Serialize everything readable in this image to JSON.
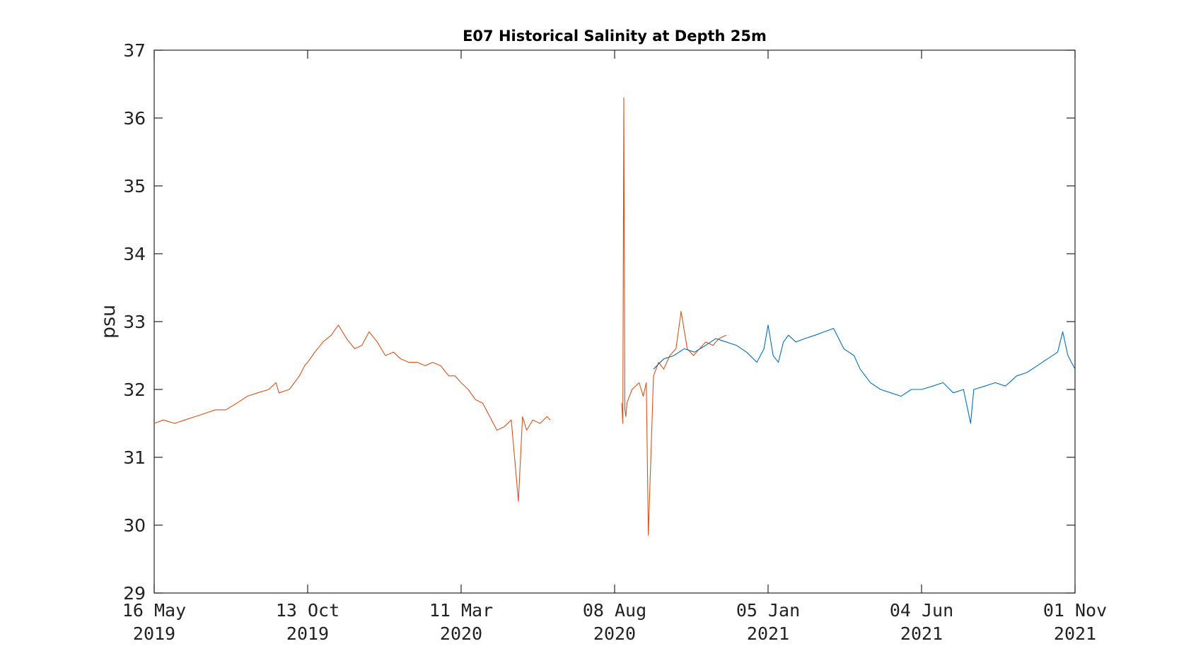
{
  "chart_data": {
    "type": "line",
    "title": "E07 Historical Salinity at Depth 25m",
    "xlabel": "",
    "ylabel": "psu",
    "ylim": [
      29,
      37
    ],
    "yticks": [
      "29",
      "30",
      "31",
      "32",
      "33",
      "34",
      "35",
      "36",
      "37"
    ],
    "xlim": [
      "2019-05-16",
      "2021-11-01"
    ],
    "xticks": [
      {
        "line1": "16 May",
        "line2": "2019",
        "date": "2019-05-16"
      },
      {
        "line1": "13 Oct",
        "line2": "2019",
        "date": "2019-10-13"
      },
      {
        "line1": "11 Mar",
        "line2": "2020",
        "date": "2020-03-11"
      },
      {
        "line1": "08 Aug",
        "line2": "2020",
        "date": "2020-08-08"
      },
      {
        "line1": "05 Jan",
        "line2": "2021",
        "date": "2021-01-05"
      },
      {
        "line1": "04 Jun",
        "line2": "2021",
        "date": "2021-06-04"
      },
      {
        "line1": "01 Nov",
        "line2": "2021",
        "date": "2021-11-01"
      }
    ],
    "grid": false,
    "series": [
      {
        "color": "#D95319",
        "x": [
          "2019-05-16",
          "2019-05-25",
          "2019-06-05",
          "2019-06-15",
          "2019-06-25",
          "2019-07-05",
          "2019-07-15",
          "2019-07-25",
          "2019-08-05",
          "2019-08-15",
          "2019-08-25",
          "2019-09-05",
          "2019-09-12",
          "2019-09-15",
          "2019-09-25",
          "2019-10-05",
          "2019-10-10",
          "2019-10-13",
          "2019-10-20",
          "2019-10-28",
          "2019-11-05",
          "2019-11-12",
          "2019-11-20",
          "2019-11-28",
          "2019-12-05",
          "2019-12-12",
          "2019-12-20",
          "2019-12-28",
          "2020-01-05",
          "2020-01-12",
          "2020-01-20",
          "2020-01-28",
          "2020-02-05",
          "2020-02-12",
          "2020-02-20",
          "2020-02-28",
          "2020-03-05",
          "2020-03-11",
          "2020-03-18",
          "2020-03-25",
          "2020-04-01",
          "2020-04-08",
          "2020-04-15",
          "2020-04-22",
          "2020-04-29",
          "2020-05-06",
          "2020-05-10",
          "2020-05-14",
          "2020-05-20",
          "2020-05-27",
          "2020-06-03",
          "2020-06-06",
          null,
          "2020-08-15",
          "2020-08-16",
          "2020-08-17",
          "2020-08-18",
          "2020-08-19",
          "2020-08-20",
          "2020-08-25",
          "2020-09-01",
          "2020-09-05",
          "2020-09-08",
          "2020-09-10",
          "2020-09-15",
          "2020-09-20",
          "2020-09-25",
          "2020-10-01",
          "2020-10-07",
          "2020-10-12",
          "2020-10-18",
          "2020-10-24",
          "2020-10-30",
          "2020-11-05",
          "2020-11-12",
          "2020-11-18",
          "2020-11-25"
        ],
        "y": [
          31.5,
          31.55,
          31.5,
          31.55,
          31.6,
          31.65,
          31.7,
          31.7,
          31.8,
          31.9,
          31.95,
          32.0,
          32.1,
          31.95,
          32.0,
          32.2,
          32.35,
          32.4,
          32.55,
          32.7,
          32.8,
          32.95,
          32.75,
          32.6,
          32.65,
          32.85,
          32.7,
          32.5,
          32.55,
          32.45,
          32.4,
          32.4,
          32.35,
          32.4,
          32.35,
          32.2,
          32.2,
          32.1,
          32.0,
          31.85,
          31.8,
          31.6,
          31.4,
          31.45,
          31.55,
          30.35,
          31.6,
          31.4,
          31.55,
          31.5,
          31.6,
          31.55,
          null,
          31.8,
          31.5,
          36.3,
          31.7,
          31.6,
          31.8,
          32.0,
          32.1,
          31.9,
          32.1,
          29.85,
          32.2,
          32.4,
          32.3,
          32.5,
          32.6,
          33.15,
          32.6,
          32.5,
          32.6,
          32.7,
          32.65,
          32.75,
          32.8
        ]
      },
      {
        "color": "#0072BD",
        "x": [
          "2020-09-15",
          "2020-09-25",
          "2020-10-05",
          "2020-10-15",
          "2020-10-25",
          "2020-11-05",
          "2020-11-15",
          "2020-11-25",
          "2020-12-05",
          "2020-12-15",
          "2020-12-25",
          "2021-01-01",
          "2021-01-05",
          "2021-01-10",
          "2021-01-15",
          "2021-01-20",
          "2021-01-25",
          "2021-02-01",
          "2021-02-10",
          "2021-02-20",
          "2021-03-01",
          "2021-03-10",
          "2021-03-20",
          "2021-03-30",
          "2021-04-05",
          "2021-04-15",
          "2021-04-25",
          "2021-05-05",
          "2021-05-15",
          "2021-05-25",
          "2021-06-04",
          "2021-06-15",
          "2021-06-25",
          "2021-07-05",
          "2021-07-15",
          "2021-07-22",
          "2021-07-25",
          "2021-08-05",
          "2021-08-15",
          "2021-08-25",
          "2021-09-05",
          "2021-09-15",
          "2021-09-25",
          "2021-10-05",
          "2021-10-15",
          "2021-10-20",
          "2021-10-25",
          "2021-11-01"
        ],
        "y": [
          32.3,
          32.45,
          32.5,
          32.6,
          32.55,
          32.65,
          32.75,
          32.7,
          32.65,
          32.55,
          32.4,
          32.6,
          32.95,
          32.5,
          32.4,
          32.7,
          32.8,
          32.7,
          32.75,
          32.8,
          32.85,
          32.9,
          32.6,
          32.5,
          32.3,
          32.1,
          32.0,
          31.95,
          31.9,
          32.0,
          32.0,
          32.05,
          32.1,
          31.95,
          32.0,
          31.5,
          32.0,
          32.05,
          32.1,
          32.05,
          32.2,
          32.25,
          32.35,
          32.45,
          32.55,
          32.85,
          32.5,
          32.3
        ]
      }
    ]
  }
}
